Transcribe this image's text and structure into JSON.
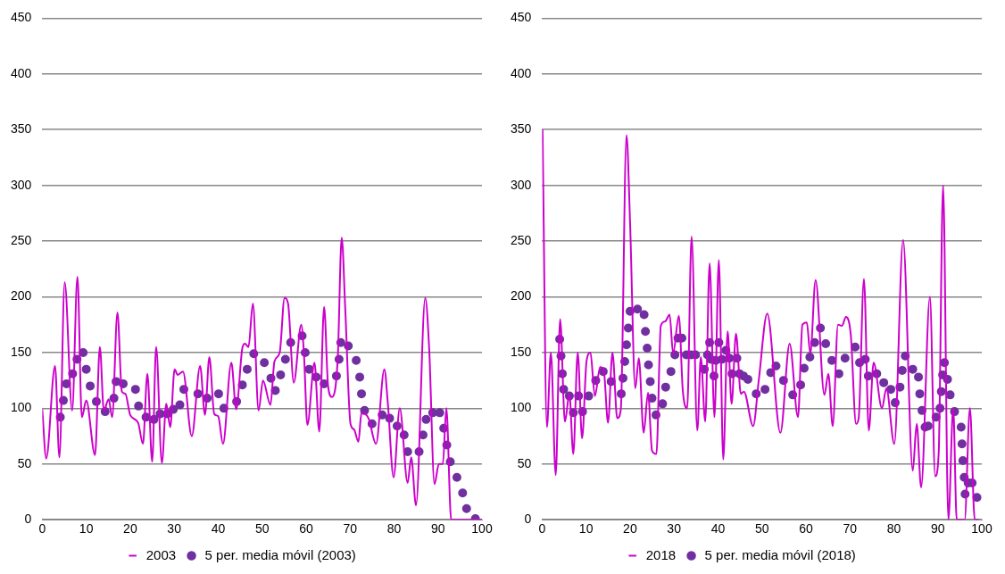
{
  "chart_data": [
    {
      "type": "line",
      "xlim": [
        0,
        100
      ],
      "xticks": [
        0,
        10,
        20,
        30,
        40,
        50,
        60,
        70,
        80,
        90,
        100
      ],
      "ylim": [
        0,
        450
      ],
      "yticks": [
        0,
        50,
        100,
        150,
        200,
        250,
        300,
        350,
        400,
        450
      ],
      "grid": "y",
      "legend": "bottom",
      "series": [
        {
          "name": "2003",
          "type": "line",
          "color": "#cc00cc",
          "marker": "none",
          "x": [
            0,
            0.9,
            2.9,
            3.9,
            5.1,
            6.8,
            8.0,
            9.0,
            10.0,
            12.0,
            13.1,
            14.0,
            15.1,
            15.9,
            17.1,
            18.1,
            18.9,
            20.0,
            21.8,
            22.9,
            23.9,
            25.0,
            25.9,
            27.2,
            28.2,
            29.1,
            30.1,
            30.8,
            32.0,
            34.0,
            35.9,
            37.0,
            38.0,
            39.1,
            40.0,
            41.1,
            43.0,
            44.1,
            45.5,
            46.1,
            46.9,
            47.9,
            49.2,
            50.2,
            51.9,
            52.8,
            54.0,
            55.1,
            55.9,
            57.2,
            58.9,
            59.5,
            60.3,
            61.9,
            63.0,
            64.1,
            65.0,
            65.9,
            67.2,
            68.1,
            68.9,
            70.1,
            70.9,
            71.9,
            72.6,
            74.2,
            75.9,
            77.8,
            78.6,
            79.9,
            81.3,
            83.1,
            83.9,
            85.0,
            87.1,
            88.0,
            89.2,
            90.2,
            91.1,
            91.9,
            93.0,
            100
          ],
          "values": [
            99,
            55,
            138,
            56,
            213,
            98,
            218,
            92,
            107,
            58,
            155,
            98,
            108,
            92,
            186,
            115,
            113,
            94,
            87,
            68,
            131,
            52,
            155,
            51,
            104,
            83,
            135,
            130,
            133,
            75,
            138,
            94,
            146,
            95,
            93,
            68,
            141,
            99,
            154,
            158,
            155,
            194,
            98,
            125,
            103,
            142,
            150,
            199,
            194,
            123,
            175,
            150,
            85,
            141,
            79,
            191,
            120,
            110,
            145,
            253,
            190,
            86,
            81,
            70,
            96,
            91,
            68,
            135,
            104,
            38,
            100,
            33,
            56,
            13,
            199,
            153,
            32,
            50,
            50,
            100,
            0,
            0
          ]
        },
        {
          "name": "5 per. media móvil (2003)",
          "type": "scatter",
          "color": "#7030a0",
          "marker": "circle",
          "x": [
            4.1,
            4.8,
            5.5,
            6.9,
            7.9,
            9.3,
            10.0,
            10.9,
            12.3,
            14.3,
            16.3,
            16.8,
            18.4,
            21.2,
            21.9,
            23.6,
            25.4,
            26.8,
            28.4,
            29.8,
            31.3,
            32.2,
            35.4,
            37.5,
            40.1,
            41.3,
            44.2,
            45.5,
            46.6,
            48.1,
            50.5,
            52.0,
            53.0,
            54.2,
            55.3,
            56.5,
            59.1,
            59.8,
            60.7,
            62.3,
            64.1,
            66.9,
            67.5,
            67.9,
            69.6,
            71.4,
            72.2,
            72.6,
            73.3,
            75.0,
            77.3,
            79.0,
            80.7,
            82.3,
            83.1,
            85.7,
            86.6,
            87.3,
            88.8,
            90.4,
            91.3,
            92.0,
            92.8,
            94.3,
            95.6,
            96.5,
            98.5
          ],
          "values": [
            92,
            107,
            122,
            131,
            144,
            150,
            135,
            120,
            106,
            97,
            109,
            124,
            122,
            117,
            102,
            92,
            90,
            95,
            95,
            99,
            103,
            117,
            113,
            109,
            113,
            100,
            106,
            121,
            135,
            149,
            141,
            127,
            116,
            130,
            144,
            159,
            165,
            150,
            135,
            128,
            122,
            129,
            144,
            159,
            156,
            143,
            128,
            113,
            98,
            86,
            94,
            91,
            84,
            76,
            61,
            61,
            76,
            90,
            96,
            96,
            82,
            67,
            52,
            38,
            24,
            10,
            1
          ]
        }
      ]
    },
    {
      "type": "line",
      "xlim": [
        0,
        100
      ],
      "xticks": [
        0,
        10,
        20,
        30,
        40,
        50,
        60,
        70,
        80,
        90,
        100
      ],
      "ylim": [
        0,
        450
      ],
      "yticks": [
        0,
        50,
        100,
        150,
        200,
        250,
        300,
        350,
        400,
        450
      ],
      "grid": "y",
      "legend": "bottom",
      "series": [
        {
          "name": "2018",
          "type": "line",
          "color": "#cc00cc",
          "marker": "none",
          "x": [
            0.1,
            1.1,
            2.0,
            3.1,
            4.1,
            5.2,
            6.2,
            7.1,
            8.1,
            9.1,
            10.1,
            11.0,
            12.0,
            13.2,
            14.0,
            15.0,
            16.0,
            17.1,
            17.9,
            19.2,
            20.0,
            21.2,
            22.0,
            23.1,
            24.1,
            25.0,
            26.0,
            27.0,
            28.0,
            29.0,
            29.8,
            31.1,
            32.0,
            33.0,
            34.0,
            35.3,
            36.1,
            37.1,
            38.1,
            39.2,
            40.2,
            41.2,
            42.2,
            43.1,
            44.1,
            45.2,
            45.9,
            48.0,
            49.3,
            51.2,
            54.2,
            56.3,
            58.2,
            59.2,
            60.2,
            61.0,
            62.2,
            64.2,
            65.1,
            66.1,
            67.3,
            68.2,
            69.1,
            70.2,
            71.4,
            72.0,
            73.2,
            74.3,
            75.4,
            77.3,
            78.3,
            80.1,
            82.1,
            84.3,
            85.2,
            86.2,
            88.2,
            89.4,
            90.2,
            91.2,
            92.4,
            93.5,
            94.3,
            96.1,
            97.3,
            98.4,
            99.3
          ],
          "values": [
            350,
            83,
            150,
            40,
            180,
            88,
            113,
            59,
            150,
            73,
            142,
            150,
            111,
            137,
            135,
            87,
            150,
            91,
            99,
            345,
            268,
            118,
            145,
            78,
            114,
            62,
            59,
            174,
            178,
            184,
            149,
            183,
            116,
            100,
            254,
            80,
            146,
            88,
            230,
            92,
            233,
            54,
            169,
            104,
            167,
            113,
            115,
            84,
            126,
            185,
            78,
            158,
            92,
            175,
            177,
            149,
            215,
            112,
            131,
            84,
            175,
            174,
            182,
            166,
            86,
            91,
            216,
            80,
            141,
            100,
            118,
            68,
            251,
            44,
            86,
            29,
            200,
            39,
            60,
            300,
            0,
            100,
            0,
            0,
            100,
            0,
            0
          ]
        },
        {
          "name": "5 per. media móvil (2018)",
          "type": "scatter",
          "color": "#7030a0",
          "marker": "circle",
          "x": [
            4.0,
            4.3,
            4.6,
            4.9,
            6.2,
            7.1,
            8.3,
            9.2,
            10.6,
            12.2,
            13.9,
            15.7,
            18.0,
            18.4,
            18.8,
            19.2,
            19.6,
            20.0,
            21.7,
            23.2,
            23.5,
            23.9,
            24.2,
            24.6,
            25.0,
            25.9,
            27.4,
            28.1,
            29.3,
            30.2,
            30.9,
            31.8,
            32.8,
            33.9,
            34.9,
            36.9,
            37.6,
            38.1,
            38.4,
            39.1,
            39.5,
            40.2,
            40.9,
            41.8,
            42.6,
            43.2,
            44.3,
            44.9,
            45.8,
            46.8,
            48.7,
            50.7,
            52.0,
            53.2,
            54.9,
            57.0,
            58.8,
            59.6,
            60.9,
            62.0,
            63.3,
            64.5,
            65.9,
            67.5,
            68.9,
            71.2,
            72.2,
            73.5,
            74.2,
            76.1,
            77.7,
            79.3,
            80.3,
            81.4,
            81.9,
            82.6,
            84.3,
            85.6,
            85.9,
            86.4,
            87.1,
            87.8,
            89.6,
            90.5,
            90.8,
            91.1,
            91.5,
            92.2,
            92.8,
            93.8,
            95.3,
            95.5,
            95.7,
            96.0,
            96.2,
            96.9,
            97.8,
            98.9
          ],
          "values": [
            162,
            147,
            131,
            117,
            111,
            96,
            111,
            97,
            111,
            125,
            133,
            124,
            113,
            127,
            142,
            157,
            172,
            187,
            189,
            184,
            169,
            154,
            139,
            124,
            109,
            94,
            104,
            119,
            133,
            148,
            163,
            163,
            148,
            148,
            148,
            135,
            148,
            159,
            144,
            129,
            143,
            159,
            144,
            152,
            145,
            131,
            145,
            131,
            129,
            126,
            113,
            117,
            132,
            138,
            125,
            112,
            121,
            136,
            146,
            159,
            172,
            158,
            143,
            131,
            145,
            155,
            141,
            144,
            129,
            131,
            123,
            117,
            105,
            119,
            134,
            147,
            135,
            128,
            113,
            98,
            83,
            84,
            92,
            100,
            115,
            130,
            141,
            126,
            112,
            97,
            83,
            68,
            53,
            38,
            23,
            33,
            33,
            20
          ]
        }
      ]
    }
  ]
}
